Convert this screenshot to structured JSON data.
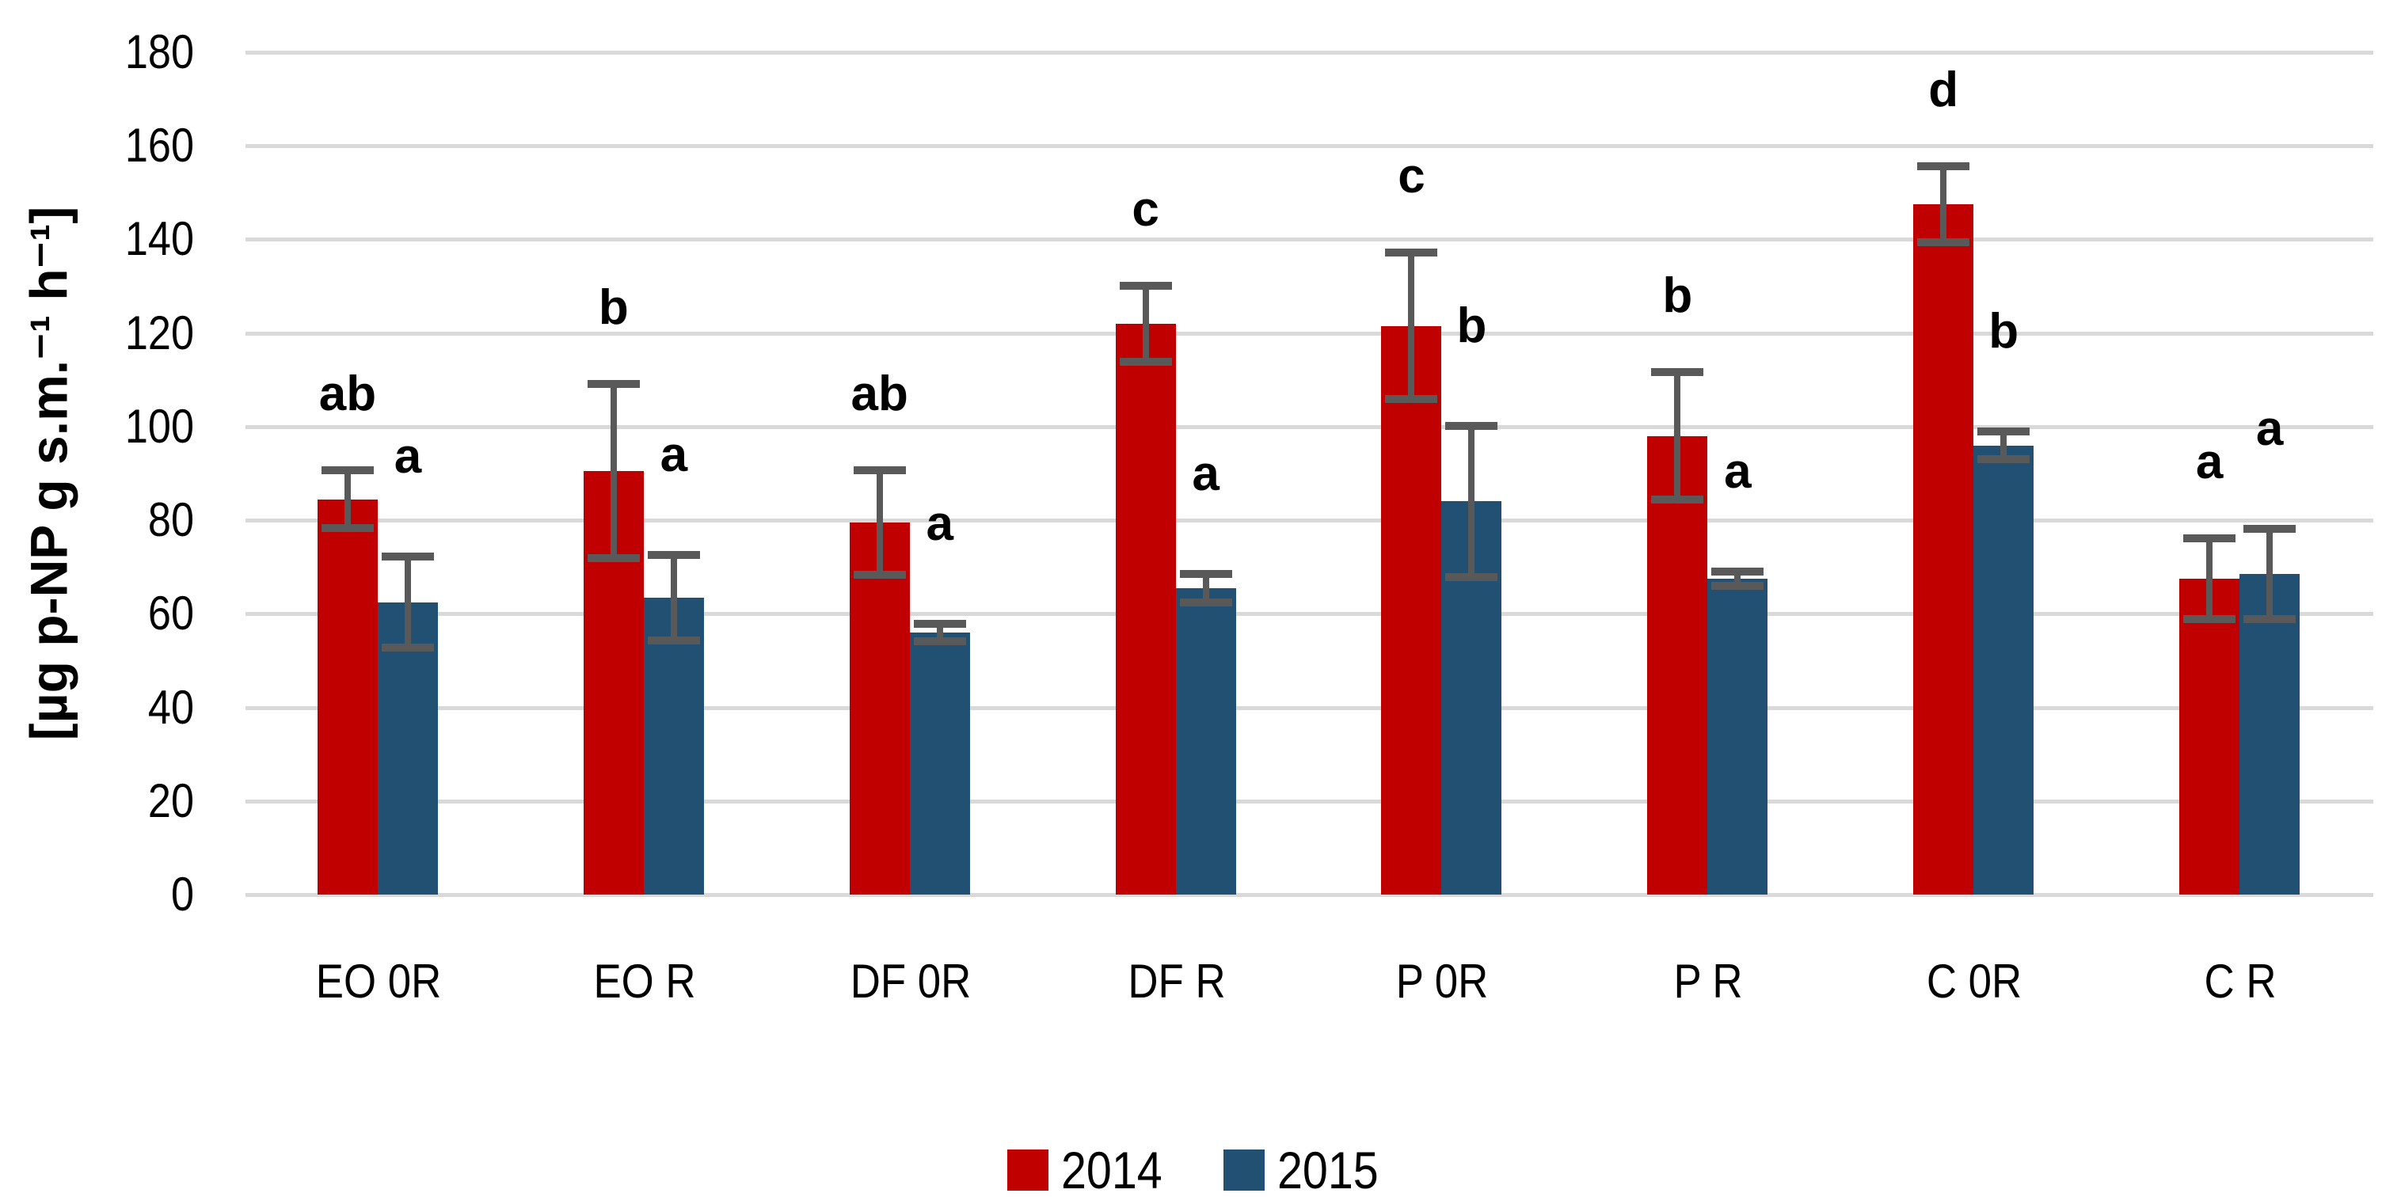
{
  "chart_data": {
    "type": "bar",
    "title": "",
    "xlabel": "",
    "ylabel": "[µg p-NP g s.m.⁻¹ h⁻¹]",
    "ylim": [
      0,
      180
    ],
    "ytick_step": 20,
    "grid": true,
    "legend_position": "bottom",
    "categories": [
      "EO 0R",
      "EO R",
      "DF 0R",
      "DF R",
      "P 0R",
      "P R",
      "C 0R",
      "C R"
    ],
    "series": [
      {
        "name": "2014",
        "color": "#C00000",
        "values": [
          84.5,
          90.5,
          79.5,
          122,
          121.5,
          98,
          147.5,
          67.5
        ],
        "errors": [
          7,
          19.5,
          12,
          9,
          16.5,
          14.5,
          9,
          9.5
        ],
        "letters": [
          "ab",
          "b",
          "ab",
          "c",
          "c",
          "b",
          "d",
          "a"
        ]
      },
      {
        "name": "2015",
        "color": "#215072",
        "values": [
          62.5,
          63.5,
          56,
          65.5,
          84,
          67.5,
          96,
          68.5
        ],
        "errors": [
          10.5,
          10,
          2.7,
          3.9,
          17,
          2.3,
          3.8,
          10.5
        ],
        "letters": [
          "a",
          "a",
          "a",
          "a",
          "b",
          "a",
          "b",
          "a"
        ]
      }
    ],
    "colors": {
      "gridline": "#D9D9D9",
      "error_bar": "#595959",
      "background": "#FFFFFF",
      "text": "#000000"
    }
  }
}
